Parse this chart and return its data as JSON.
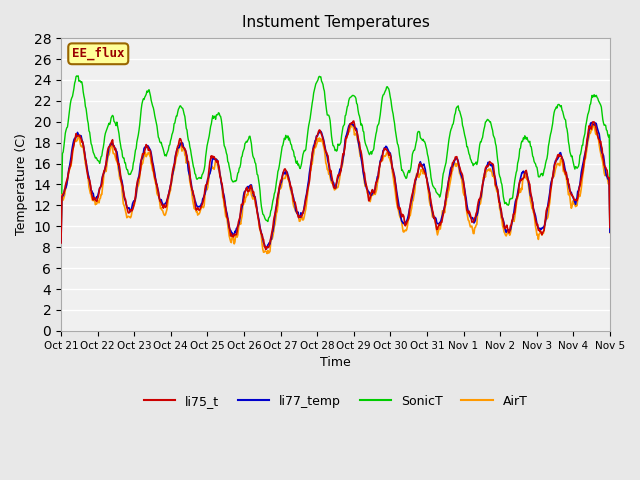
{
  "title": "Instument Temperatures",
  "xlabel": "Time",
  "ylabel": "Temperature (C)",
  "ylim": [
    0,
    28
  ],
  "yticks": [
    0,
    2,
    4,
    6,
    8,
    10,
    12,
    14,
    16,
    18,
    20,
    22,
    24,
    26,
    28
  ],
  "xtick_labels": [
    "Oct 21",
    "Oct 22",
    "Oct 23",
    "Oct 24",
    "Oct 25",
    "Oct 26",
    "Oct 27",
    "Oct 28",
    "Oct 29",
    "Oct 30",
    "Oct 31",
    "Nov 1",
    "Nov 2",
    "Nov 3",
    "Nov 4",
    "Nov 5"
  ],
  "colors": {
    "li75_t": "#cc0000",
    "li77_temp": "#0000cc",
    "SonicT": "#00cc00",
    "AirT": "#ff9900"
  },
  "legend_box_color": "#ffff99",
  "legend_box_edge": "#996600",
  "annotation_text": "EE_flux",
  "annotation_color": "#990000",
  "bg_color": "#e8e8e8",
  "plot_bg_color": "#f0f0f0",
  "grid_color": "#ffffff",
  "figsize": [
    6.4,
    4.8
  ],
  "dpi": 100
}
